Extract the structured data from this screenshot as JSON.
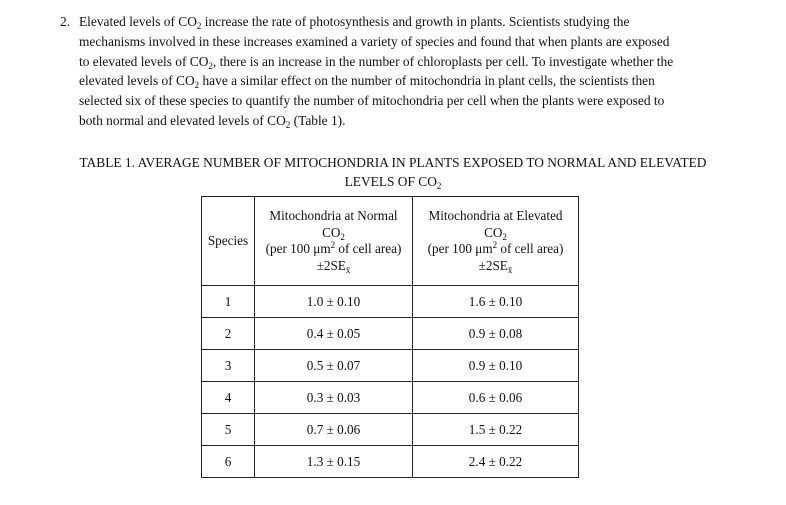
{
  "question": {
    "number": "2.",
    "text": [
      [
        "Elevated levels of CO",
        "2",
        " increase the rate of photosynthesis and growth in plants. Scientists studying the"
      ],
      [
        "mechanisms involved in these increases examined a variety of species and found that when plants are exposed"
      ],
      [
        "to elevated levels of CO",
        "2",
        ", there is an increase in the number of chloroplasts per cell. To investigate whether the"
      ],
      [
        "elevated levels of CO",
        "2",
        " have a similar effect on the number of mitochondria in plant cells, the scientists then"
      ],
      [
        "selected six of these species to quantify the number of mitochondria per cell when the plants were exposed to"
      ],
      [
        "both normal and elevated levels of CO",
        "2",
        " (Table 1)."
      ]
    ]
  },
  "caption": {
    "line1": "TABLE 1. AVERAGE NUMBER OF MITOCHONDRIA IN PLANTS EXPOSED TO NORMAL AND ELEVATED",
    "line2": [
      "LEVELS OF CO",
      "2",
      ""
    ]
  },
  "table": {
    "species_header": "Species",
    "col_normal": {
      "line1": "Mitochondria at Normal",
      "line2": [
        "CO",
        "2",
        ""
      ],
      "line3_pre": "(per 100 μm",
      "line3_sup": "2",
      "line3_post": " of cell area)",
      "line4_pre": "±2SE",
      "line4_sub": "x̄"
    },
    "col_elevated": {
      "line1": "Mitochondria at Elevated",
      "line2": [
        "CO",
        "2",
        ""
      ],
      "line3_pre": "(per 100 μm",
      "line3_sup": "2",
      "line3_post": " of cell area)",
      "line4_pre": "±2SE",
      "line4_sub": "x̄"
    },
    "rows": [
      {
        "species": "1",
        "normal": "1.0 ± 0.10",
        "elevated": "1.6 ± 0.10"
      },
      {
        "species": "2",
        "normal": "0.4 ± 0.05",
        "elevated": "0.9 ± 0.08"
      },
      {
        "species": "3",
        "normal": "0.5 ± 0.07",
        "elevated": "0.9 ± 0.10"
      },
      {
        "species": "4",
        "normal": "0.3 ± 0.03",
        "elevated": "0.6 ± 0.06"
      },
      {
        "species": "5",
        "normal": "0.7 ± 0.06",
        "elevated": "1.5 ± 0.22"
      },
      {
        "species": "6",
        "normal": "1.3 ± 0.15",
        "elevated": "2.4 ± 0.22"
      }
    ]
  }
}
